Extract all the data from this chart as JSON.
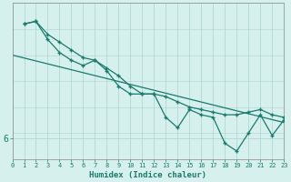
{
  "xlabel": "Humidex (Indice chaleur)",
  "bg_color": "#d6f0ed",
  "line_color": "#1a7a6e",
  "grid_color": "#aad4cf",
  "xlim": [
    0,
    23
  ],
  "ylim": [
    5.6,
    8.6
  ],
  "series1_x": [
    1,
    2,
    3,
    4,
    5,
    6,
    7,
    8,
    9,
    10,
    11,
    12,
    13,
    14,
    15,
    16,
    17,
    18,
    19,
    20,
    21,
    22,
    23
  ],
  "series1_y": [
    8.2,
    8.25,
    8.0,
    7.85,
    7.7,
    7.55,
    7.5,
    7.35,
    7.2,
    7.0,
    6.85,
    6.85,
    6.8,
    6.7,
    6.6,
    6.55,
    6.5,
    6.45,
    6.45,
    6.5,
    6.55,
    6.45,
    6.4
  ],
  "series2_x": [
    1,
    2,
    3,
    4,
    5,
    6,
    7,
    8,
    9,
    10,
    11,
    12,
    13,
    14,
    15,
    16,
    17,
    18,
    19,
    20,
    21,
    22,
    23
  ],
  "series2_y": [
    8.2,
    8.25,
    7.9,
    7.65,
    7.5,
    7.4,
    7.5,
    7.3,
    7.0,
    6.85,
    6.85,
    6.85,
    6.4,
    6.2,
    6.55,
    6.45,
    6.4,
    5.9,
    5.75,
    6.1,
    6.45,
    6.05,
    6.35
  ],
  "trend_x": [
    0,
    23
  ],
  "trend_y": [
    7.6,
    6.3
  ],
  "yticks": [
    6
  ],
  "xticks": [
    0,
    1,
    2,
    3,
    4,
    5,
    6,
    7,
    8,
    9,
    10,
    11,
    12,
    13,
    14,
    15,
    16,
    17,
    18,
    19,
    20,
    21,
    22,
    23
  ]
}
